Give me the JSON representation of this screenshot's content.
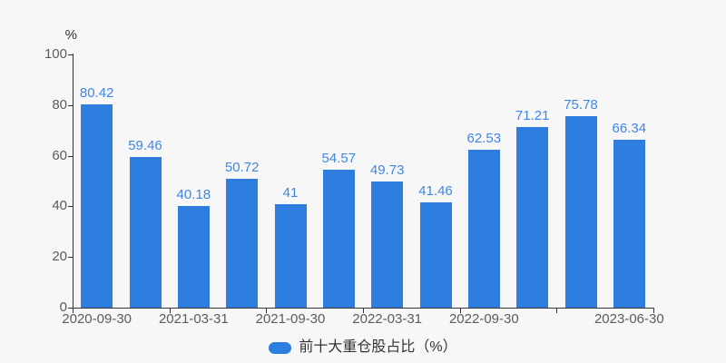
{
  "chart_data": {
    "type": "bar",
    "title": "",
    "ylabel": "%",
    "xlabel": "",
    "ylim": [
      0,
      100
    ],
    "y_ticks": [
      0,
      20,
      40,
      60,
      80,
      100
    ],
    "values": [
      80.42,
      59.46,
      40.18,
      50.72,
      41,
      54.57,
      49.73,
      41.46,
      62.53,
      71.21,
      75.78,
      66.34
    ],
    "value_labels": [
      "80.42",
      "59.46",
      "40.18",
      "50.72",
      "41",
      "54.57",
      "49.73",
      "41.46",
      "62.53",
      "71.21",
      "75.78",
      "66.34"
    ],
    "num_bars": 12,
    "x_tick_labels": [
      "2020-09-30",
      "2021-03-31",
      "2021-09-30",
      "2022-03-31",
      "2022-09-30",
      "2023-06-30"
    ],
    "x_label_bar_indices": [
      0,
      2,
      4,
      6,
      8,
      11
    ],
    "legend": "前十大重仓股占比（%）",
    "legend_position": "bottom",
    "grid": false,
    "colors": {
      "bar": "#2e7ee0",
      "value_label": "#3f87e6",
      "axis": "#333333",
      "tick_label": "#5c5c5c",
      "unit_label": "#333333",
      "legend_text": "#333333",
      "background": "#f7f7f7"
    }
  }
}
